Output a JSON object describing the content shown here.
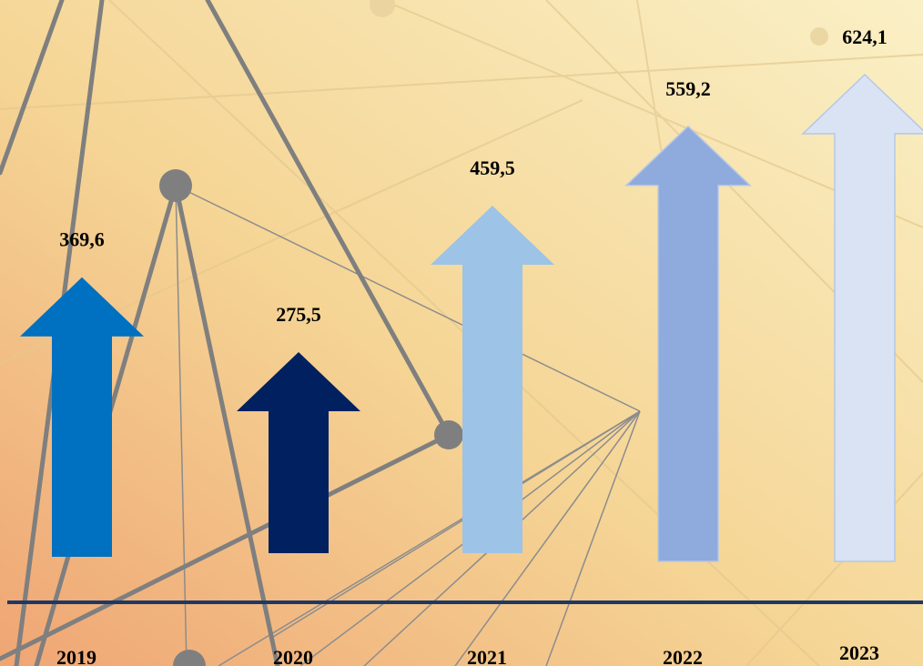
{
  "chart_data": {
    "type": "bar",
    "categories": [
      "2019",
      "2020",
      "2021",
      "2022",
      "2023"
    ],
    "values": [
      369.6,
      275.5,
      459.5,
      559.2,
      624.1
    ],
    "value_labels": [
      "369,6",
      "275,5",
      "459,5",
      "559,2",
      "624,1"
    ],
    "bar_style": "upward-arrow",
    "colors": [
      "#0070C0",
      "#002060",
      "#9DC3E6",
      "#8FAADC",
      "#DAE3F3"
    ],
    "axis_color": "#1F3864",
    "background": "warm gradient with grey network lines",
    "title": "",
    "xlabel": "",
    "ylabel": "",
    "grid": false,
    "legend": "none"
  }
}
